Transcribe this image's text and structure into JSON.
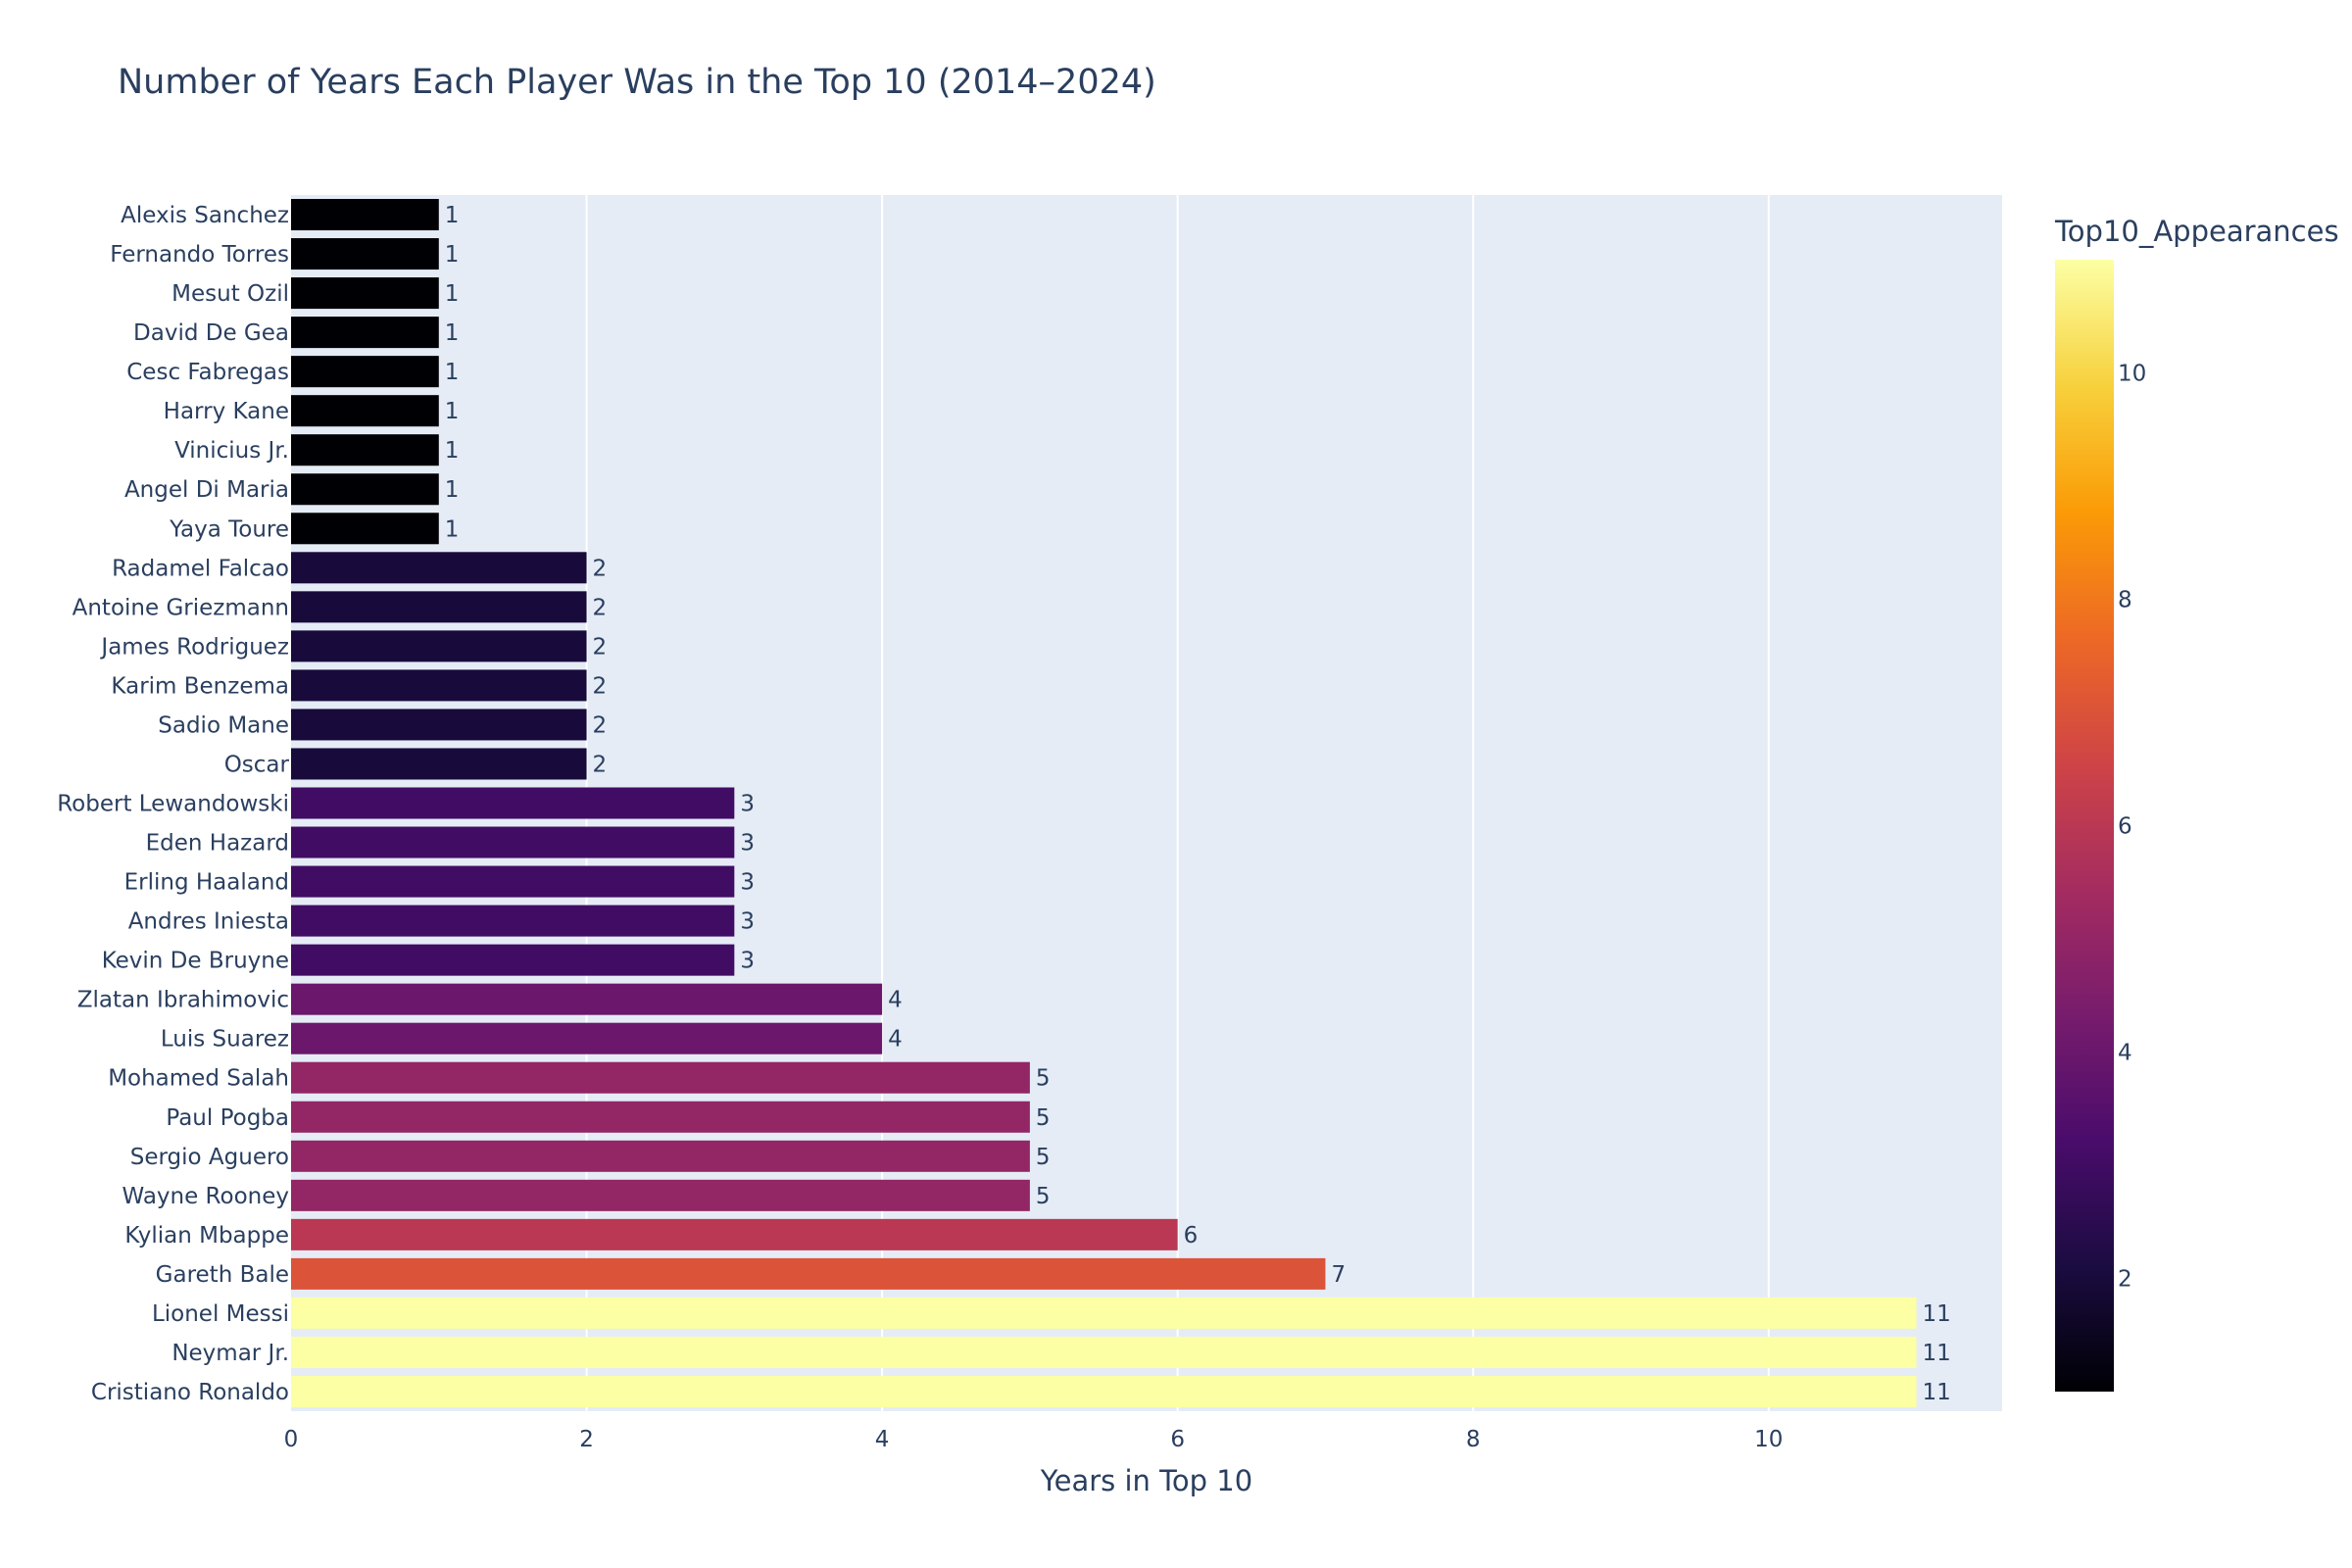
{
  "chart_data": {
    "type": "bar",
    "orientation": "horizontal",
    "title": "Number of Years Each Player Was in the Top 10 (2014–2024)",
    "xlabel": "Years in Top 10",
    "ylabel": "",
    "xlim": [
      0,
      11.58
    ],
    "x_ticks": [
      0,
      2,
      4,
      6,
      8,
      10
    ],
    "grid": true,
    "categories": [
      "Alexis Sanchez",
      "Fernando Torres",
      "Mesut Ozil",
      "David De Gea",
      "Cesc Fabregas",
      "Harry Kane",
      "Vinicius Jr.",
      "Angel Di Maria",
      "Yaya Toure",
      "Radamel Falcao",
      "Antoine Griezmann",
      "James Rodriguez",
      "Karim Benzema",
      "Sadio Mane",
      "Oscar",
      "Robert Lewandowski",
      "Eden Hazard",
      "Erling Haaland",
      "Andres Iniesta",
      "Kevin De Bruyne",
      "Zlatan Ibrahimovic",
      "Luis Suarez",
      "Mohamed Salah",
      "Paul Pogba",
      "Sergio Aguero",
      "Wayne Rooney",
      "Kylian Mbappe",
      "Gareth Bale",
      "Lionel Messi",
      "Neymar Jr.",
      "Cristiano Ronaldo"
    ],
    "values": [
      1,
      1,
      1,
      1,
      1,
      1,
      1,
      1,
      1,
      2,
      2,
      2,
      2,
      2,
      2,
      3,
      3,
      3,
      3,
      3,
      4,
      4,
      5,
      5,
      5,
      5,
      6,
      7,
      11,
      11,
      11
    ],
    "colorbar": {
      "title": "Top10_Appearances",
      "range": [
        1,
        11
      ],
      "ticks": [
        2,
        4,
        6,
        8,
        10
      ],
      "colorscale": "inferno"
    }
  },
  "colors": {
    "plot_bg": "#e5ecf6",
    "grid": "#ffffff",
    "text": "#2a3f5f",
    "scale": [
      "#000004",
      "#1b0c41",
      "#4a0c6b",
      "#781c6d",
      "#a52c60",
      "#cf4446",
      "#ed6925",
      "#fb9b06",
      "#f7d13d",
      "#fcffa4"
    ]
  }
}
